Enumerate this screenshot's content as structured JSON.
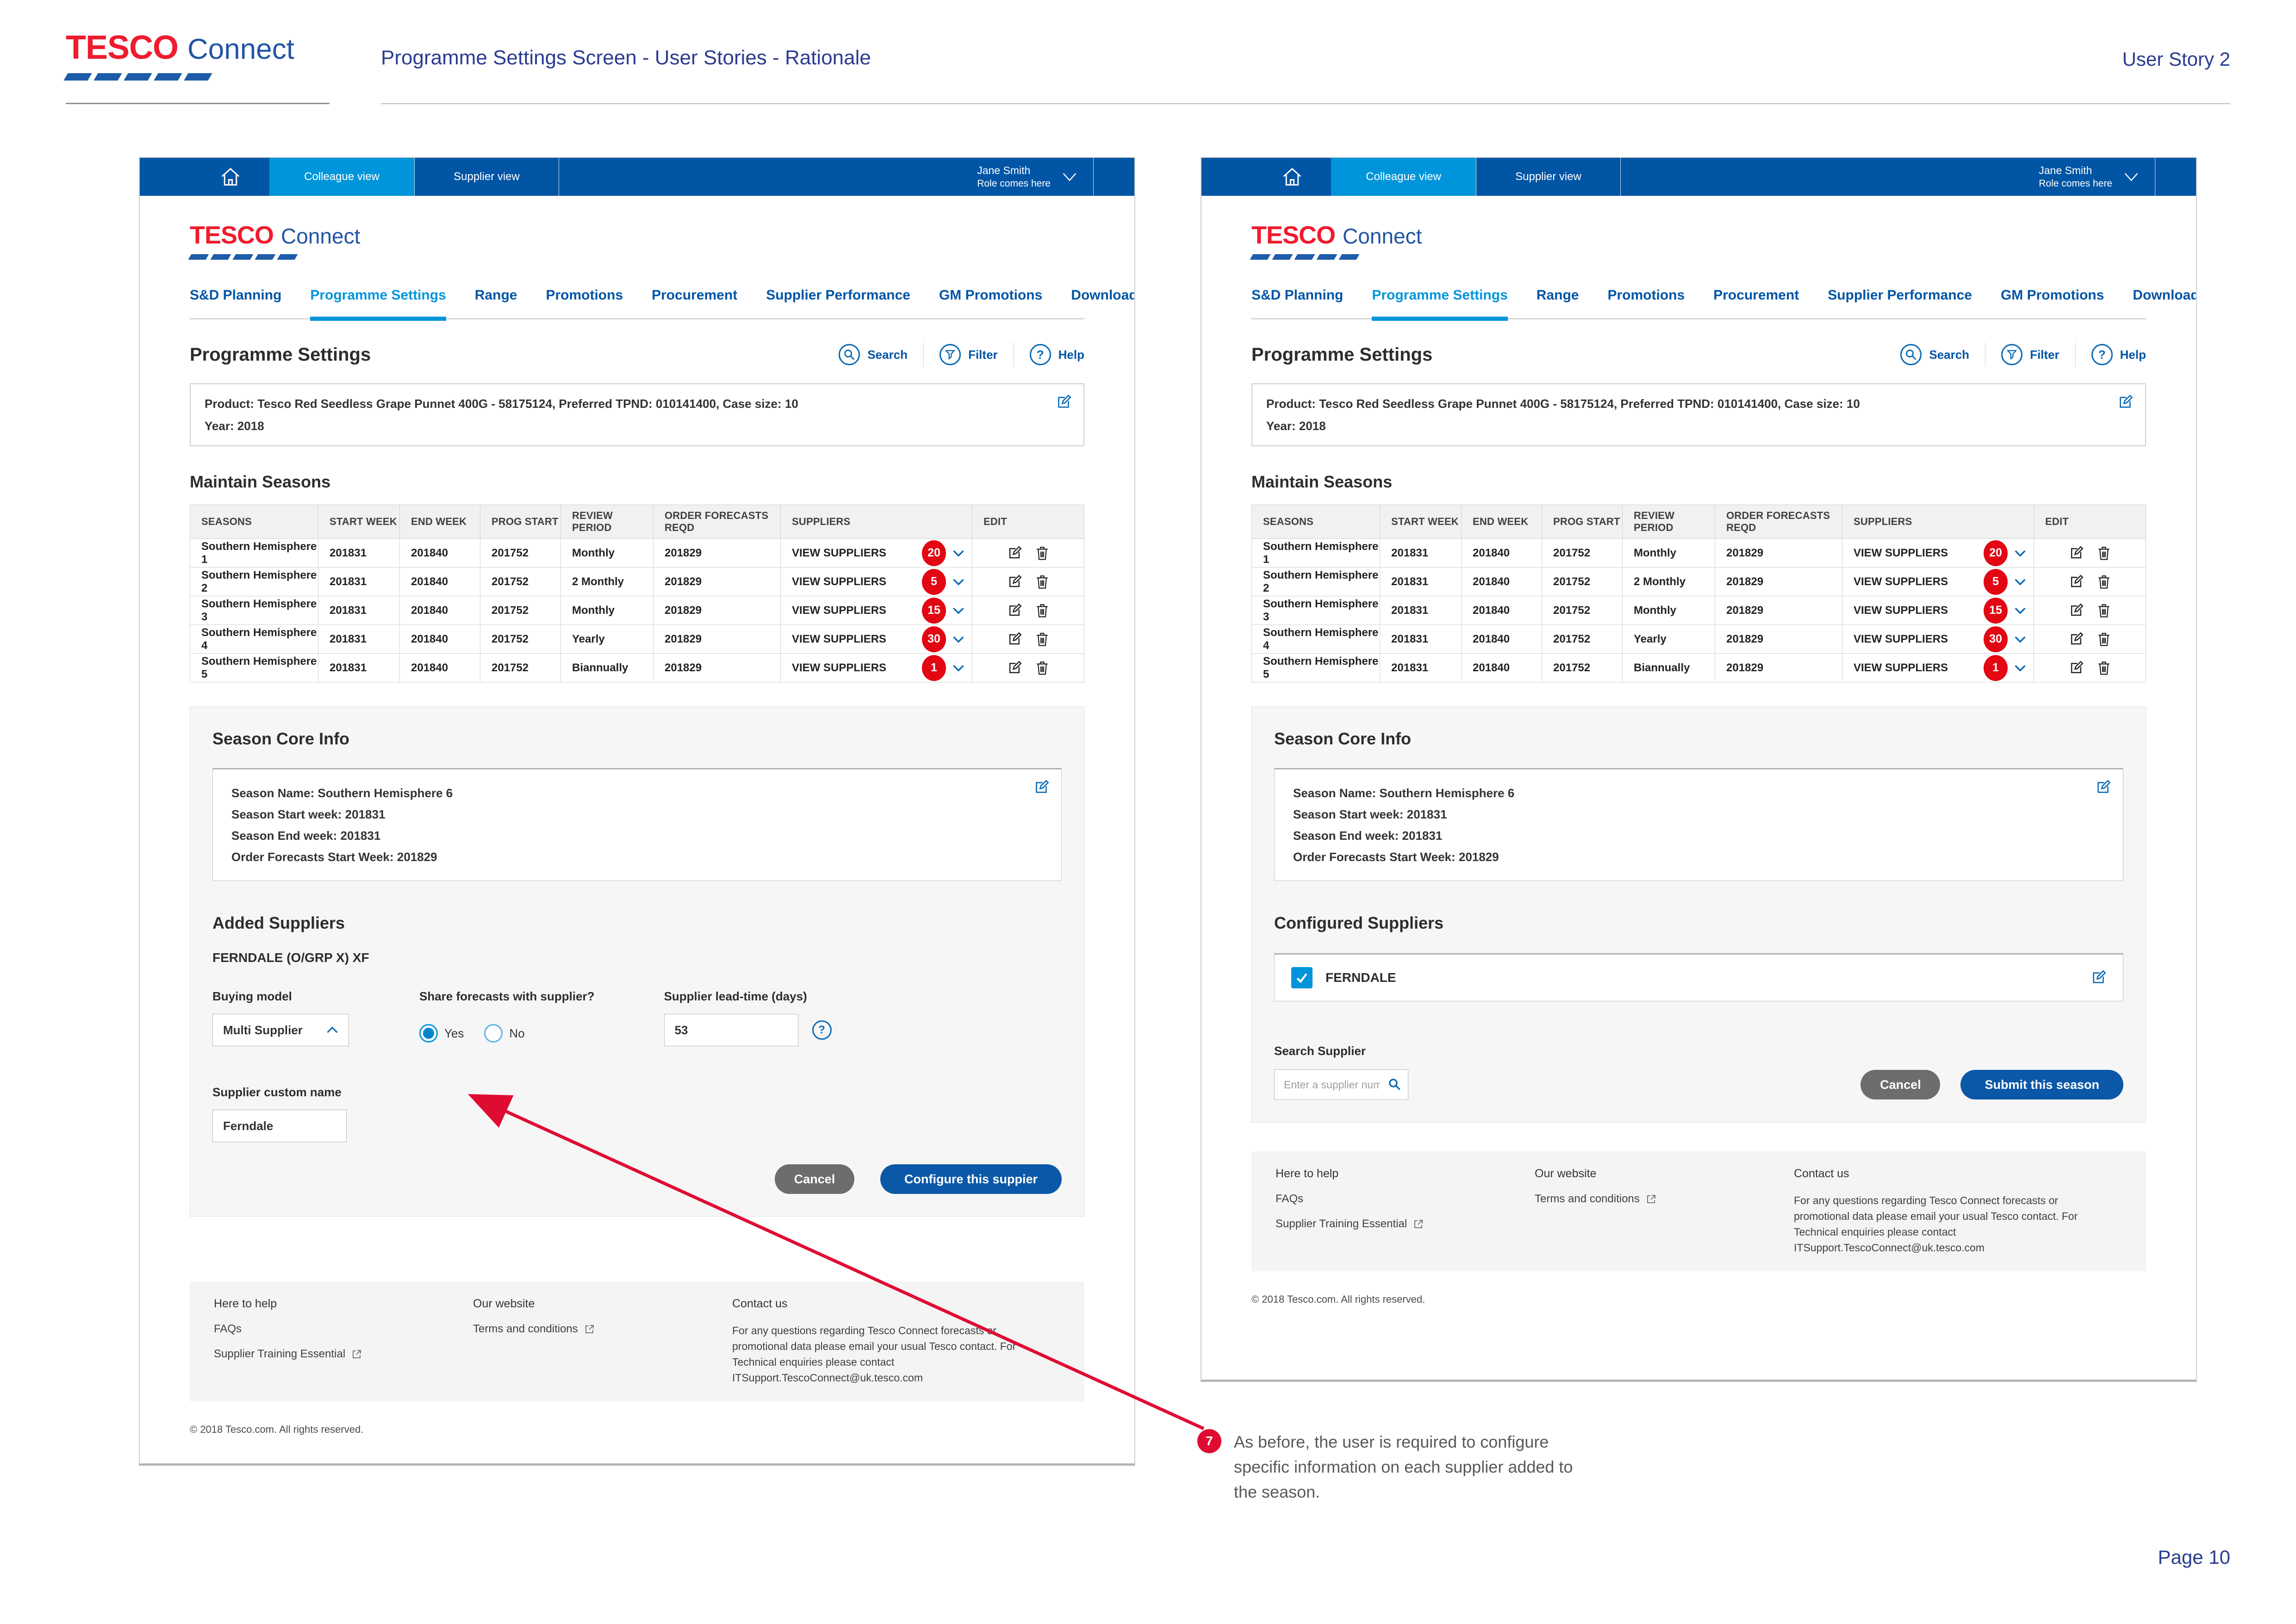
{
  "page": {
    "brand": {
      "tesco": "TESCO",
      "connect": "Connect"
    },
    "title": "Programme Settings Screen - User Stories - Rationale",
    "user_story": "User Story 2",
    "page_number": "Page 10",
    "annotation": {
      "number": "7",
      "text": "As before, the user is required to configure specific information on each supplier added to the season."
    },
    "colors": {
      "tesco_red": "#ee1c2e",
      "badge_red": "#e30613",
      "annotation_red": "#df0c32",
      "dark_blue": "#0055a5",
      "light_blue": "#0095da",
      "icon_blue": "#0a6ab4",
      "title_blue": "#2b3c8f"
    }
  },
  "app": {
    "topbar": {
      "tabs": [
        "Colleague view",
        "Supplier view"
      ],
      "user_name": "Jane Smith",
      "user_role": "Role comes here"
    },
    "brand": {
      "tesco": "TESCO",
      "connect": "Connect"
    },
    "nav": {
      "items": [
        {
          "label": "S&D Planning"
        },
        {
          "label": "Programme Settings",
          "active": true
        },
        {
          "label": "Range"
        },
        {
          "label": "Promotions"
        },
        {
          "label": "Procurement"
        },
        {
          "label": "Supplier Performance"
        },
        {
          "label": "GM Promotions"
        },
        {
          "label": "Downloads",
          "right": true
        }
      ]
    },
    "page_heading": "Programme Settings",
    "actions": {
      "search": "Search",
      "filter": "Filter",
      "help": "Help"
    },
    "icons": {
      "home": "house-outline",
      "chevron_down": "v",
      "chevron_up": "^",
      "edit": "square-pencil",
      "trash": "trash-can",
      "search": "magnifier",
      "filter": "funnel",
      "help": "?",
      "external_link": "box-arrow",
      "check": "✓"
    },
    "product_box": {
      "line1": "Product: Tesco Red Seedless Grape Punnet 400G - 58175124, Preferred TPND: 010141400, Case size: 10",
      "line2": "Year: 2018"
    },
    "maintain_seasons_heading": "Maintain Seasons",
    "table": {
      "columns": [
        "SEASONS",
        "START WEEK",
        "END WEEK",
        "PROG START",
        "REVIEW PERIOD",
        "ORDER FORECASTS REQD",
        "SUPPLIERS",
        "EDIT"
      ],
      "rows": [
        {
          "season": "Southern Hemisphere 1",
          "start_week": "201831",
          "end_week": "201840",
          "prog_start": "201752",
          "review_period": "Monthly",
          "order_forecasts_reqd": "201829",
          "suppliers_label": "VIEW SUPPLIERS",
          "supplier_count": "20"
        },
        {
          "season": "Southern Hemisphere 2",
          "start_week": "201831",
          "end_week": "201840",
          "prog_start": "201752",
          "review_period": "2 Monthly",
          "order_forecasts_reqd": "201829",
          "suppliers_label": "VIEW SUPPLIERS",
          "supplier_count": "5"
        },
        {
          "season": "Southern Hemisphere 3",
          "start_week": "201831",
          "end_week": "201840",
          "prog_start": "201752",
          "review_period": "Monthly",
          "order_forecasts_reqd": "201829",
          "suppliers_label": "VIEW SUPPLIERS",
          "supplier_count": "15"
        },
        {
          "season": "Southern Hemisphere 4",
          "start_week": "201831",
          "end_week": "201840",
          "prog_start": "201752",
          "review_period": "Yearly",
          "order_forecasts_reqd": "201829",
          "suppliers_label": "VIEW SUPPLIERS",
          "supplier_count": "30"
        },
        {
          "season": "Southern Hemisphere 5",
          "start_week": "201831",
          "end_week": "201840",
          "prog_start": "201752",
          "review_period": "Biannually",
          "order_forecasts_reqd": "201829",
          "suppliers_label": "VIEW SUPPLIERS",
          "supplier_count": "1"
        }
      ]
    },
    "season_core_info": {
      "heading": "Season Core Info",
      "lines": [
        "Season Name: Southern Hemisphere 6",
        "Season Start week: 201831",
        "Season End week: 201831",
        "Order Forecasts Start Week: 201829"
      ]
    },
    "footer": {
      "col1": {
        "heading": "Here to help",
        "link1": "FAQs",
        "link2": "Supplier Training Essential"
      },
      "col2": {
        "heading": "Our website",
        "link1": "Terms and conditions"
      },
      "col3": {
        "heading": "Contact us",
        "text": "For any questions regarding Tesco Connect forecasts or promotional data please email your usual Tesco contact. For Technical enquiries please contact ITSupport.TescoConnect@uk.tesco.com"
      },
      "copyright": "© 2018 Tesco.com. All rights reserved."
    }
  },
  "left_screen": {
    "added_suppliers": {
      "heading": "Added Suppliers",
      "supplier_name": "FERNDALE (O/GRP X) XF",
      "buying_model": {
        "label": "Buying model",
        "value": "Multi Supplier"
      },
      "share_forecasts": {
        "label": "Share forecasts with supplier?",
        "option_yes": "Yes",
        "option_no": "No",
        "selected": "Yes"
      },
      "lead_time": {
        "label": "Supplier lead-time (days)",
        "value": "53"
      },
      "custom_name": {
        "label": "Supplier custom name",
        "value": "Ferndale"
      },
      "cancel_label": "Cancel",
      "submit_label": "Configure this suppier"
    }
  },
  "right_screen": {
    "configured_suppliers": {
      "heading": "Configured Suppliers",
      "supplier_name": "FERNDALE",
      "checkbox_checked": true,
      "search": {
        "label": "Search Supplier",
        "placeholder": "Enter a supplier number"
      },
      "cancel_label": "Cancel",
      "submit_label": "Submit this season"
    }
  }
}
